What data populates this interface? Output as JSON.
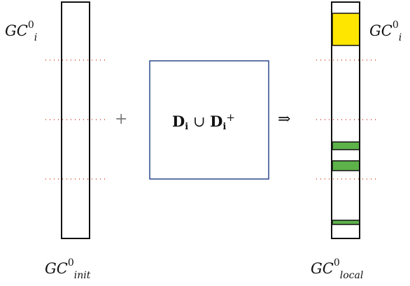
{
  "labels": {
    "left_top": {
      "base": "GC",
      "sup": "0",
      "sub": "i"
    },
    "right_top": {
      "base": "GC",
      "sup": "0",
      "sub": "i"
    },
    "left_bottom": {
      "base": "GC",
      "sup": "0",
      "sub": "init"
    },
    "right_bottom": {
      "base": "GC",
      "sup": "0",
      "sub": "local"
    }
  },
  "operators": {
    "plus": "+",
    "implies": "⇒"
  },
  "center_box": {
    "d1": "D",
    "d1_sub": "i",
    "union": "∪",
    "d2": "D",
    "d2_sub": "i",
    "d2_sup": "+"
  },
  "colors": {
    "outline": "#111111",
    "dots": "#cc2200",
    "box_border": "#2c4a8a",
    "highlight_yellow": "#ffe600",
    "highlight_green": "#5db24a"
  }
}
